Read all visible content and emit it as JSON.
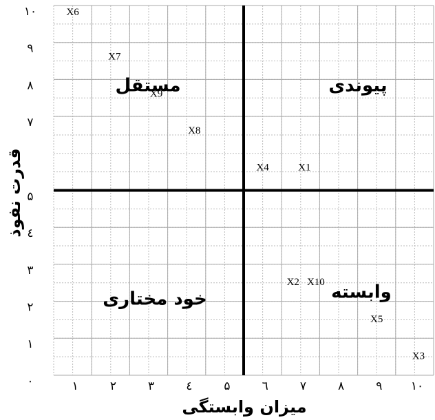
{
  "chart_data": {
    "type": "scatter",
    "x_label": "میزان وابستگی",
    "y_label": "قدرت نفوذ",
    "point_labels": [
      "X1",
      "X2",
      "X3",
      "X4",
      "X5",
      "X6",
      "X7",
      "X8",
      "X9",
      "X10"
    ],
    "x": [
      6.6,
      6.3,
      9.6,
      5.5,
      8.5,
      0.5,
      1.6,
      3.7,
      2.7,
      6.9
    ],
    "values": [
      5.6,
      2.5,
      0.5,
      5.6,
      1.5,
      9.8,
      8.6,
      6.6,
      7.6,
      2.5
    ],
    "xlim": [
      0,
      10
    ],
    "ylim": [
      0,
      10
    ],
    "xticks": [
      {
        "value": 1,
        "label": "۱"
      },
      {
        "value": 2,
        "label": "۲"
      },
      {
        "value": 3,
        "label": "۳"
      },
      {
        "value": 4,
        "label": "٤"
      },
      {
        "value": 5,
        "label": "۵"
      },
      {
        "value": 6,
        "label": "٦"
      },
      {
        "value": 7,
        "label": "۷"
      },
      {
        "value": 8,
        "label": "۸"
      },
      {
        "value": 9,
        "label": "۹"
      },
      {
        "value": 10,
        "label": "۱۰"
      }
    ],
    "yticks": [
      {
        "value": 0,
        "label": "۰"
      },
      {
        "value": 1,
        "label": "۱"
      },
      {
        "value": 2,
        "label": "۲"
      },
      {
        "value": 3,
        "label": "۳"
      },
      {
        "value": 4,
        "label": "٤"
      },
      {
        "value": 5,
        "label": "۵"
      },
      {
        "value": 7,
        "label": "۷"
      },
      {
        "value": 8,
        "label": "۸"
      },
      {
        "value": 9,
        "label": "۹"
      },
      {
        "value": 10,
        "label": "۱۰"
      }
    ],
    "divider": {
      "x": 5,
      "y": 5
    },
    "quadrant_labels": {
      "top_left": "مستقل",
      "top_right": "پیوندی",
      "bottom_left": "خود مختاری",
      "bottom_right": "وابسته"
    },
    "grid": true
  }
}
